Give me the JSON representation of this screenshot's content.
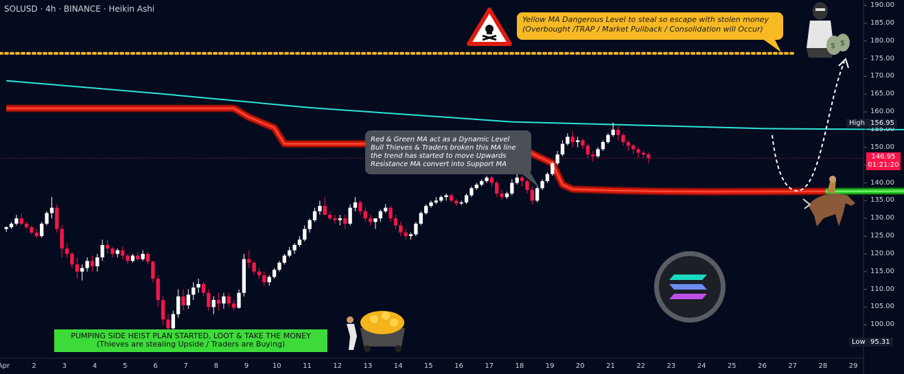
{
  "header": {
    "title": "SOLUSD · 4h · BINANCE · Heikin Ashi"
  },
  "annotations": {
    "yellow_line_1": "Yellow MA Dangerous Level to steal so escape with stolen money",
    "yellow_line_2": "(Overbought /TRAP / Market Pullback / Consolidation will Occur)",
    "grey_line_1": "Red & Green MA act as a Dynamic Level",
    "grey_line_2": "Bull Thieves & Traders broken this MA line",
    "grey_line_3": "the trend has started to move Upwards",
    "grey_line_4": "Resistance MA convert into Support MA",
    "green_line_1": "PUMPING SIDE HEIST PLAN STARTED, LOOT & TAKE THE MONEY",
    "green_line_2": "(Thieves are stealing Upside / Traders are Buying)"
  },
  "price_tags": {
    "high_label": "High",
    "high_value": "156.95",
    "current_value": "146.95",
    "countdown": "01:21:20",
    "low_label": "Low",
    "low_value": "95.31"
  },
  "colors": {
    "background": "#050b1f",
    "up": "#ffffff",
    "down": "#f7154a",
    "cyan_ma": "#2ee6d6",
    "red_ma": "#e01b10",
    "green_ma": "#2ecc2e",
    "yellow_ma": "#f7b924"
  },
  "chart_data": {
    "type": "candlestick",
    "style": "Heikin Ashi",
    "ylim": [
      90,
      192.5
    ],
    "y_ticks": [
      95,
      100,
      105,
      110,
      115,
      120,
      125,
      130,
      135,
      140,
      145,
      150,
      155,
      160,
      165,
      170,
      175,
      180,
      185,
      190
    ],
    "y_tick_labels": [
      "95.00",
      "100.00",
      "105.00",
      "110.00",
      "115.00",
      "120.00",
      "125.00",
      "130.00",
      "135.00",
      "140.00",
      "145.00",
      "150.00",
      "155.00",
      "160.00",
      "165.00",
      "170.00",
      "175.00",
      "180.00",
      "185.00",
      "190.00"
    ],
    "x_ticks": [
      "Apr",
      "2",
      "3",
      "4",
      "5",
      "6",
      "7",
      "8",
      "9",
      "10",
      "11",
      "12",
      "13",
      "14",
      "15",
      "16",
      "17",
      "18",
      "19",
      "20",
      "21",
      "22",
      "23",
      "24",
      "25",
      "26",
      "27",
      "28",
      "29"
    ],
    "x_start_label": "Apr",
    "candles_per_day": 6,
    "grid": false,
    "candles": [
      [
        127,
        127.8,
        126.2,
        127.5
      ],
      [
        127.5,
        129,
        127,
        128.5
      ],
      [
        128.5,
        131,
        128,
        130
      ],
      [
        130,
        131.5,
        128,
        128.5
      ],
      [
        128.5,
        129,
        127,
        127.5
      ],
      [
        127.5,
        128,
        125.5,
        126
      ],
      [
        126,
        127,
        124.5,
        125
      ],
      [
        125,
        129,
        124.6,
        128.5
      ],
      [
        128.5,
        132,
        128,
        131.5
      ],
      [
        131.5,
        136,
        130,
        133
      ],
      [
        133,
        134,
        126,
        127
      ],
      [
        127,
        128,
        119,
        121.5
      ],
      [
        121.5,
        123,
        119,
        120
      ],
      [
        120,
        120.5,
        116,
        117
      ],
      [
        117,
        119,
        113,
        115
      ],
      [
        115,
        117,
        112.5,
        116
      ],
      [
        116,
        119,
        115,
        118
      ],
      [
        118,
        119.5,
        115,
        116.5
      ],
      [
        116.5,
        120,
        115,
        119
      ],
      [
        119,
        124,
        118,
        122.5
      ],
      [
        122.5,
        124,
        120,
        121.5
      ],
      [
        121.5,
        122,
        119,
        120
      ],
      [
        120,
        121.5,
        119,
        121
      ],
      [
        121,
        122,
        118.5,
        119.5
      ],
      [
        119.5,
        120,
        117,
        118
      ],
      [
        118,
        120,
        117.5,
        119.5
      ],
      [
        119.5,
        120.5,
        118,
        118.5
      ],
      [
        118.5,
        121,
        118,
        120
      ],
      [
        120,
        120.5,
        117,
        117.8
      ],
      [
        117.8,
        118,
        112,
        113
      ],
      [
        113,
        114,
        105,
        107
      ],
      [
        107,
        108,
        100,
        101.5
      ],
      [
        101.5,
        103,
        98,
        99
      ],
      [
        99,
        104,
        98.5,
        103
      ],
      [
        103,
        110,
        102,
        108
      ],
      [
        108,
        110,
        104,
        105.5
      ],
      [
        105.5,
        110,
        104.5,
        108.5
      ],
      [
        108.5,
        112,
        107,
        110.5
      ],
      [
        110.5,
        113,
        109,
        111.5
      ],
      [
        111.5,
        112,
        108,
        109
      ],
      [
        109,
        110,
        104,
        105
      ],
      [
        105,
        108,
        103,
        107
      ],
      [
        107,
        109,
        104,
        106
      ],
      [
        106,
        109,
        104.5,
        108
      ],
      [
        108,
        109,
        105,
        106
      ],
      [
        106,
        107,
        104,
        104.8
      ],
      [
        104.8,
        110,
        104.5,
        109
      ],
      [
        109,
        120,
        108,
        118.5
      ],
      [
        118.5,
        121,
        116,
        117.5
      ],
      [
        117.5,
        118,
        114,
        115
      ],
      [
        115,
        116,
        113,
        114
      ],
      [
        114,
        115,
        111,
        112
      ],
      [
        112,
        114,
        111,
        113.5
      ],
      [
        113.5,
        116,
        113,
        115.5
      ],
      [
        115.5,
        118,
        115,
        117.5
      ],
      [
        117.5,
        120,
        117,
        119.5
      ],
      [
        119.5,
        122,
        119,
        121
      ],
      [
        121,
        123,
        120,
        122.5
      ],
      [
        122.5,
        125,
        122,
        124
      ],
      [
        124,
        128,
        123.5,
        127
      ],
      [
        127,
        130,
        126,
        129.5
      ],
      [
        129.5,
        133,
        129,
        132
      ],
      [
        132,
        135,
        131,
        133.5
      ],
      [
        133.5,
        136,
        132,
        131
      ],
      [
        131,
        132,
        129.5,
        130
      ],
      [
        130,
        131,
        128.5,
        129.5
      ],
      [
        129.5,
        131,
        128,
        130
      ],
      [
        130,
        131,
        127,
        128.5
      ],
      [
        128.5,
        134,
        128,
        133
      ],
      [
        133,
        136,
        132,
        134.5
      ],
      [
        134.5,
        135,
        131,
        132
      ],
      [
        132,
        133,
        129,
        130
      ],
      [
        130,
        131,
        128,
        129
      ],
      [
        129,
        130,
        127,
        130
      ],
      [
        130,
        132.5,
        129,
        132
      ],
      [
        132,
        134,
        131.5,
        133
      ],
      [
        133,
        133.5,
        129,
        130
      ],
      [
        130,
        131,
        127,
        128
      ],
      [
        128,
        129,
        125,
        126
      ],
      [
        126,
        127,
        124,
        125
      ],
      [
        125,
        126,
        124,
        125.5
      ],
      [
        125.5,
        129,
        125,
        128.5
      ],
      [
        128.5,
        132,
        128,
        131.5
      ],
      [
        131.5,
        134,
        131,
        133.5
      ],
      [
        133.5,
        135,
        133,
        134.5
      ],
      [
        134.5,
        136,
        134,
        135
      ],
      [
        135,
        136.5,
        134.5,
        136
      ],
      [
        136,
        137,
        135,
        136.5
      ],
      [
        136.5,
        137,
        134.5,
        135
      ],
      [
        135,
        135.5,
        133.5,
        134.2
      ],
      [
        134.2,
        135,
        133.8,
        134.5
      ],
      [
        134.5,
        137,
        134,
        136.5
      ],
      [
        136.5,
        139,
        136,
        138.5
      ],
      [
        138.5,
        140,
        138,
        139.5
      ],
      [
        139.5,
        141,
        139,
        140.5
      ],
      [
        140.5,
        142,
        140,
        141.5
      ],
      [
        141.5,
        142,
        139,
        140
      ],
      [
        140,
        140.5,
        136,
        137
      ],
      [
        137,
        138,
        135,
        136
      ],
      [
        136,
        137.5,
        135.5,
        137
      ],
      [
        137,
        141,
        136.5,
        140
      ],
      [
        140,
        143,
        139.5,
        141.5
      ],
      [
        141.5,
        142,
        139,
        140.5
      ],
      [
        140.5,
        141,
        137,
        138
      ],
      [
        138,
        139,
        134,
        135
      ],
      [
        135,
        139,
        134.5,
        138.5
      ],
      [
        138.5,
        141,
        138,
        140.5
      ],
      [
        140.5,
        143,
        140,
        142.5
      ],
      [
        142.5,
        146,
        142,
        145.5
      ],
      [
        145.5,
        149,
        145,
        148
      ],
      [
        148,
        152,
        147.5,
        151
      ],
      [
        151,
        154,
        150.5,
        153
      ],
      [
        153,
        154.5,
        150,
        151.5
      ],
      [
        151.5,
        153,
        150,
        152
      ],
      [
        152,
        152.5,
        149.5,
        150.5
      ],
      [
        150.5,
        151,
        147,
        148
      ],
      [
        148,
        149,
        146,
        147.5
      ],
      [
        147.5,
        150,
        147,
        149.5
      ],
      [
        149.5,
        152,
        149,
        151.5
      ],
      [
        151.5,
        154,
        151,
        153.5
      ],
      [
        153.5,
        157,
        153,
        155
      ],
      [
        155,
        156,
        152,
        153.5
      ],
      [
        153.5,
        154,
        150.5,
        151.5
      ],
      [
        151.5,
        152,
        149,
        150.5
      ],
      [
        150.5,
        151,
        148,
        149.5
      ],
      [
        149.5,
        150,
        147,
        148.5
      ],
      [
        148.5,
        149,
        147,
        148
      ],
      [
        148,
        148.5,
        145.5,
        147
      ]
    ],
    "yellow_ma_level": 176.5,
    "cyan_ma": {
      "x": [
        0,
        30,
        60,
        100,
        150,
        200,
        250,
        268
      ],
      "y": [
        168.8,
        165.2,
        161.2,
        157.2,
        155.3,
        154.8,
        154.6,
        154.5
      ]
    },
    "red_green_ma": {
      "x": [
        0,
        45,
        48,
        53,
        55,
        100,
        108,
        110,
        112,
        122,
        130,
        140,
        160,
        180,
        210,
        240,
        258,
        262,
        266
      ],
      "y": [
        161,
        161,
        158.5,
        155.5,
        151,
        151,
        145.5,
        139.5,
        138.2,
        137.8,
        137.6,
        137.5,
        137.6,
        137.7,
        137.8,
        137.8,
        137.7,
        134,
        129
      ],
      "green_from_x": 162
    }
  }
}
